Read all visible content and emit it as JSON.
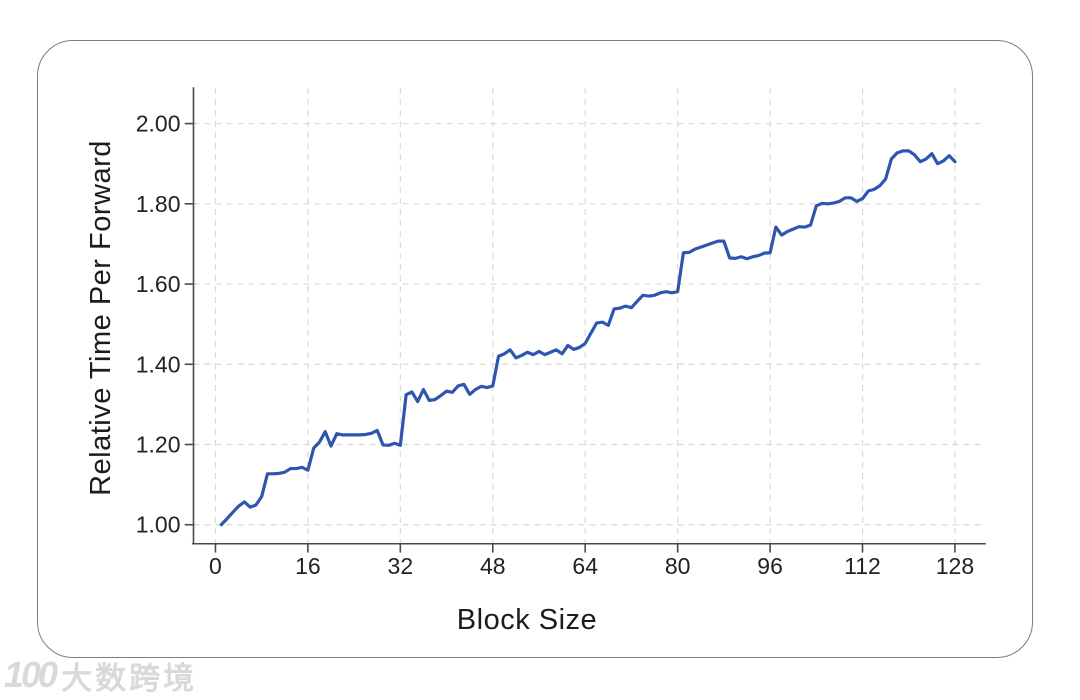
{
  "chart_data": {
    "type": "line",
    "title": "",
    "xlabel": "Block Size",
    "ylabel": "Relative Time Per Forward",
    "x_ticks": [
      0,
      16,
      32,
      48,
      64,
      80,
      96,
      112,
      128
    ],
    "y_ticks": [
      "1.00",
      "1.20",
      "1.40",
      "1.60",
      "1.80",
      "2.00"
    ],
    "xlim": [
      -3.8,
      133.2
    ],
    "ylim": [
      0.9526,
      2.0887
    ],
    "grid": "dashed-both",
    "legend": "none",
    "line_color": "#2e56b0",
    "x_range": {
      "start": 1,
      "end": 128,
      "step": 1
    },
    "series": [
      {
        "name": "relative-time-per-forward",
        "values": [
          1.0,
          1.015,
          1.031,
          1.046,
          1.057,
          1.044,
          1.049,
          1.07,
          1.127,
          1.127,
          1.128,
          1.131,
          1.14,
          1.14,
          1.143,
          1.136,
          1.191,
          1.206,
          1.232,
          1.196,
          1.227,
          1.224,
          1.224,
          1.224,
          1.224,
          1.225,
          1.228,
          1.235,
          1.199,
          1.198,
          1.203,
          1.198,
          1.324,
          1.331,
          1.307,
          1.337,
          1.31,
          1.312,
          1.322,
          1.333,
          1.33,
          1.346,
          1.35,
          1.325,
          1.337,
          1.345,
          1.342,
          1.346,
          1.42,
          1.426,
          1.436,
          1.416,
          1.422,
          1.43,
          1.424,
          1.432,
          1.424,
          1.43,
          1.436,
          1.426,
          1.447,
          1.437,
          1.442,
          1.452,
          1.478,
          1.503,
          1.505,
          1.497,
          1.538,
          1.54,
          1.545,
          1.541,
          1.557,
          1.572,
          1.57,
          1.572,
          1.578,
          1.581,
          1.578,
          1.581,
          1.678,
          1.679,
          1.687,
          1.692,
          1.697,
          1.702,
          1.707,
          1.707,
          1.665,
          1.664,
          1.668,
          1.663,
          1.668,
          1.671,
          1.677,
          1.678,
          1.742,
          1.722,
          1.731,
          1.737,
          1.743,
          1.742,
          1.747,
          1.795,
          1.801,
          1.8,
          1.802,
          1.806,
          1.815,
          1.815,
          1.806,
          1.813,
          1.832,
          1.836,
          1.845,
          1.862,
          1.912,
          1.927,
          1.932,
          1.932,
          1.922,
          1.905,
          1.912,
          1.925,
          1.9,
          1.907,
          1.92,
          1.905
        ]
      }
    ]
  },
  "watermark": {
    "logo": "100",
    "text": "大数跨境"
  },
  "colors": {
    "line": "#2e56b0",
    "grid": "#dadada",
    "axis": "#4a4a4a",
    "tick_text": "#222222",
    "card_border": "#7d7d7d",
    "watermark": "#d9d9d9"
  }
}
